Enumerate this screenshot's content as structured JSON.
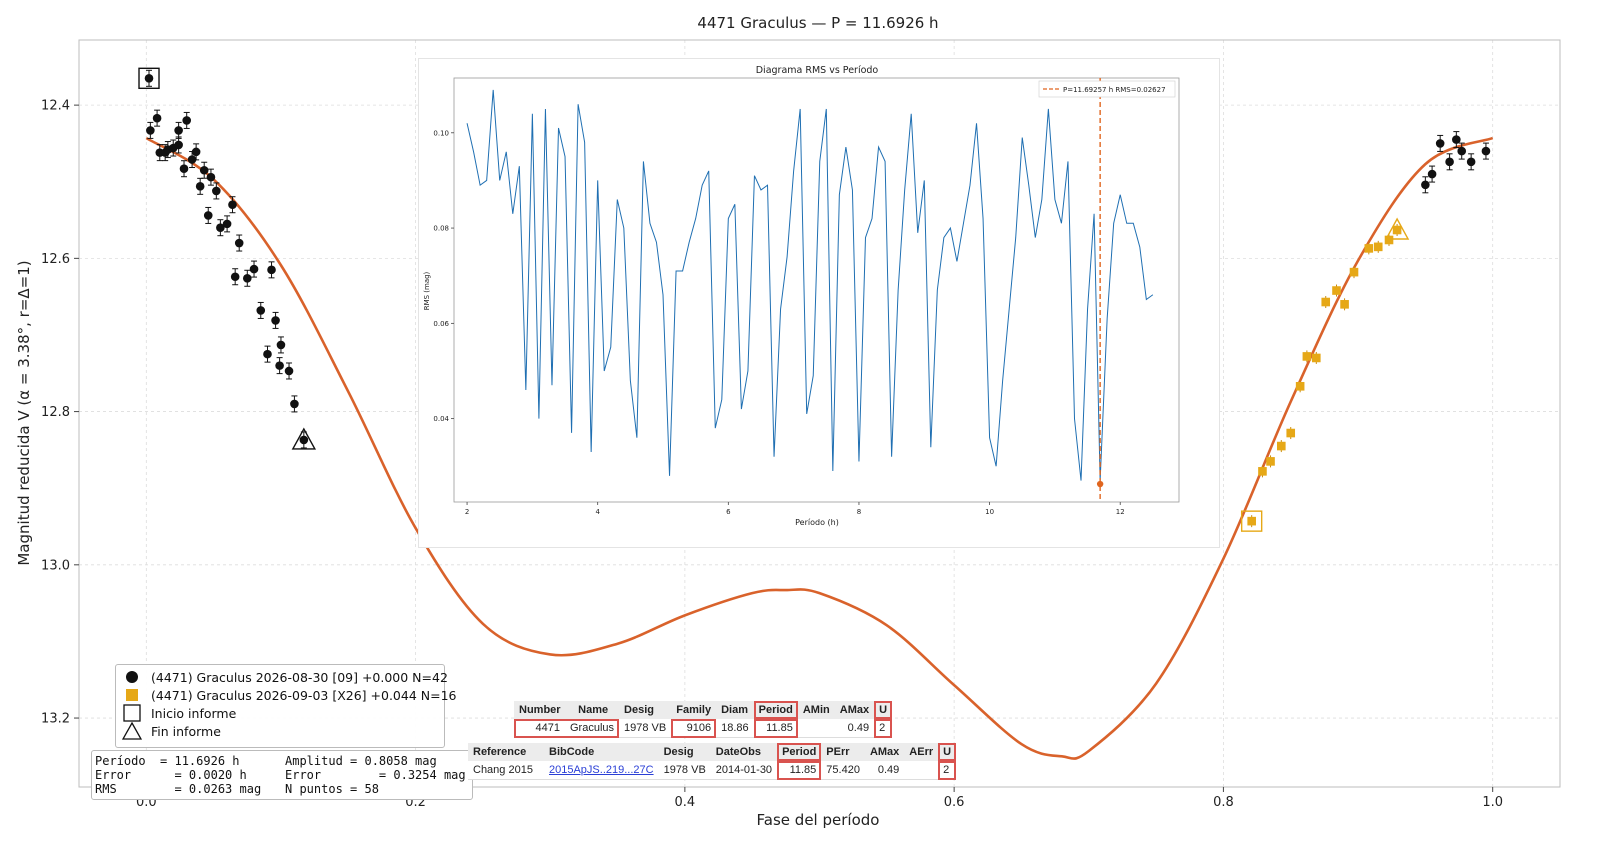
{
  "chart_data": {
    "type": "scatter",
    "title": "4471 Graculus — P = 11.6926 h",
    "xlabel": "Fase del período",
    "ylabel": "Magnitud reducida V  (α = 3.38°, r=Δ=1)",
    "xlim": [
      -0.05,
      1.05
    ],
    "ylim": [
      13.29,
      12.315
    ],
    "y_inverted": true,
    "x_ticks": [
      "0.0",
      "0.2",
      "0.4",
      "0.6",
      "0.8",
      "1.0"
    ],
    "x_tick_values": [
      0.0,
      0.2,
      0.4,
      0.6,
      0.8,
      1.0
    ],
    "y_ticks": [
      "12.4",
      "12.6",
      "12.8",
      "13.0",
      "13.2"
    ],
    "y_tick_values": [
      12.4,
      12.6,
      12.8,
      13.0,
      13.2
    ],
    "grid": true,
    "legend_position": "lower-left",
    "colors": {
      "session1": "#111111",
      "session2": "#e6a817",
      "fit": "#d9622b"
    },
    "series": [
      {
        "name": "(4471) Graculus 2026-08-30 [09] +0.000 N=42",
        "marker": "circle",
        "points": [
          [
            0.002,
            12.365
          ],
          [
            0.003,
            12.433
          ],
          [
            0.008,
            12.417
          ],
          [
            0.01,
            12.462
          ],
          [
            0.014,
            12.462
          ],
          [
            0.016,
            12.458
          ],
          [
            0.02,
            12.456
          ],
          [
            0.024,
            12.452
          ],
          [
            0.024,
            12.433
          ],
          [
            0.028,
            12.483
          ],
          [
            0.03,
            12.42
          ],
          [
            0.034,
            12.471
          ],
          [
            0.037,
            12.461
          ],
          [
            0.04,
            12.506
          ],
          [
            0.043,
            12.485
          ],
          [
            0.046,
            12.544
          ],
          [
            0.048,
            12.494
          ],
          [
            0.052,
            12.512
          ],
          [
            0.055,
            12.56
          ],
          [
            0.06,
            12.555
          ],
          [
            0.064,
            12.53
          ],
          [
            0.066,
            12.624
          ],
          [
            0.069,
            12.58
          ],
          [
            0.075,
            12.626
          ],
          [
            0.08,
            12.614
          ],
          [
            0.085,
            12.668
          ],
          [
            0.09,
            12.725
          ],
          [
            0.093,
            12.615
          ],
          [
            0.096,
            12.681
          ],
          [
            0.099,
            12.74
          ],
          [
            0.1,
            12.713
          ],
          [
            0.106,
            12.747
          ],
          [
            0.11,
            12.79
          ],
          [
            0.117,
            12.837
          ],
          [
            0.95,
            12.504
          ],
          [
            0.955,
            12.49
          ],
          [
            0.961,
            12.45
          ],
          [
            0.968,
            12.474
          ],
          [
            0.973,
            12.445
          ],
          [
            0.977,
            12.46
          ],
          [
            0.984,
            12.474
          ],
          [
            0.995,
            12.46
          ]
        ]
      },
      {
        "name": "(4471) Graculus 2026-09-03 [X26] +0.044 N=16",
        "marker": "square",
        "points": [
          [
            0.821,
            12.943
          ],
          [
            0.829,
            12.878
          ],
          [
            0.835,
            12.865
          ],
          [
            0.843,
            12.845
          ],
          [
            0.85,
            12.828
          ],
          [
            0.857,
            12.767
          ],
          [
            0.862,
            12.728
          ],
          [
            0.869,
            12.73
          ],
          [
            0.876,
            12.657
          ],
          [
            0.884,
            12.642
          ],
          [
            0.89,
            12.66
          ],
          [
            0.897,
            12.618
          ],
          [
            0.908,
            12.587
          ],
          [
            0.915,
            12.585
          ],
          [
            0.923,
            12.576
          ],
          [
            0.929,
            12.563
          ]
        ]
      }
    ],
    "fit_curve": {
      "name": "Ajuste de Fourier",
      "values": [
        [
          0.0,
          12.443
        ],
        [
          0.05,
          12.497
        ],
        [
          0.1,
          12.609
        ],
        [
          0.15,
          12.774
        ],
        [
          0.2,
          12.952
        ],
        [
          0.25,
          13.077
        ],
        [
          0.3,
          13.117
        ],
        [
          0.35,
          13.103
        ],
        [
          0.4,
          13.066
        ],
        [
          0.45,
          13.037
        ],
        [
          0.475,
          13.033
        ],
        [
          0.5,
          13.037
        ],
        [
          0.55,
          13.079
        ],
        [
          0.6,
          13.157
        ],
        [
          0.65,
          13.234
        ],
        [
          0.68,
          13.25
        ],
        [
          0.7,
          13.243
        ],
        [
          0.75,
          13.155
        ],
        [
          0.8,
          12.992
        ],
        [
          0.85,
          12.787
        ],
        [
          0.9,
          12.603
        ],
        [
          0.95,
          12.477
        ],
        [
          1.0,
          12.443
        ]
      ]
    },
    "start_marker": {
      "label": "Inicio informe",
      "x": 0.002,
      "y": 12.365
    },
    "end_markers": [
      {
        "label": "Fin informe",
        "x": 0.117,
        "y": 12.837
      },
      {
        "label": "Fin informe",
        "x": 0.929,
        "y": 12.563
      }
    ],
    "session2_start_marker": {
      "x": 0.821,
      "y": 12.943
    },
    "inset": {
      "type": "line",
      "title": "Diagrama RMS vs Período",
      "xlabel": "Período (h)",
      "ylabel": "RMS (mag)",
      "xlim": [
        1.8,
        12.9
      ],
      "ylim": [
        0.0225,
        0.1115
      ],
      "x_ticks": [
        2,
        4,
        6,
        8,
        10,
        12
      ],
      "y_ticks": [
        "0.04",
        "0.06",
        "0.08",
        "0.10"
      ],
      "y_tick_values": [
        0.04,
        0.06,
        0.08,
        0.1
      ],
      "legend": "P=11.69257 h   RMS=0.02627",
      "best_period": 11.69257,
      "best_rms": 0.02627,
      "x": [
        2.0,
        2.1,
        2.2,
        2.3,
        2.4,
        2.5,
        2.6,
        2.7,
        2.8,
        2.9,
        3.0,
        3.1,
        3.2,
        3.3,
        3.4,
        3.5,
        3.6,
        3.7,
        3.8,
        3.9,
        4.0,
        4.1,
        4.2,
        4.3,
        4.4,
        4.5,
        4.6,
        4.7,
        4.8,
        4.9,
        5.0,
        5.1,
        5.2,
        5.3,
        5.4,
        5.5,
        5.6,
        5.7,
        5.8,
        5.9,
        6.0,
        6.1,
        6.2,
        6.3,
        6.4,
        6.5,
        6.6,
        6.7,
        6.8,
        6.9,
        7.0,
        7.1,
        7.2,
        7.3,
        7.4,
        7.5,
        7.6,
        7.7,
        7.8,
        7.9,
        8.0,
        8.1,
        8.2,
        8.3,
        8.4,
        8.5,
        8.6,
        8.7,
        8.8,
        8.9,
        9.0,
        9.1,
        9.2,
        9.3,
        9.4,
        9.5,
        9.6,
        9.7,
        9.8,
        9.9,
        10.0,
        10.1,
        10.2,
        10.3,
        10.4,
        10.5,
        10.6,
        10.7,
        10.8,
        10.9,
        11.0,
        11.1,
        11.2,
        11.3,
        11.4,
        11.5,
        11.6,
        11.69257,
        11.8,
        11.9,
        12.0,
        12.1,
        12.2,
        12.3,
        12.4,
        12.5
      ],
      "y": [
        0.102,
        0.096,
        0.089,
        0.09,
        0.109,
        0.09,
        0.096,
        0.083,
        0.093,
        0.046,
        0.104,
        0.04,
        0.105,
        0.047,
        0.101,
        0.095,
        0.037,
        0.106,
        0.098,
        0.033,
        0.09,
        0.05,
        0.055,
        0.086,
        0.08,
        0.048,
        0.036,
        0.094,
        0.081,
        0.077,
        0.066,
        0.028,
        0.071,
        0.071,
        0.077,
        0.082,
        0.089,
        0.092,
        0.038,
        0.044,
        0.082,
        0.085,
        0.042,
        0.05,
        0.091,
        0.088,
        0.089,
        0.032,
        0.063,
        0.074,
        0.092,
        0.105,
        0.041,
        0.049,
        0.094,
        0.105,
        0.029,
        0.087,
        0.097,
        0.088,
        0.031,
        0.078,
        0.082,
        0.097,
        0.094,
        0.032,
        0.067,
        0.088,
        0.104,
        0.079,
        0.09,
        0.034,
        0.067,
        0.078,
        0.08,
        0.073,
        0.081,
        0.089,
        0.102,
        0.082,
        0.036,
        0.03,
        0.048,
        0.063,
        0.078,
        0.099,
        0.089,
        0.078,
        0.086,
        0.105,
        0.086,
        0.081,
        0.094,
        0.04,
        0.027,
        0.063,
        0.083,
        0.027,
        0.061,
        0.081,
        0.087,
        0.081,
        0.081,
        0.076,
        0.065,
        0.066
      ]
    }
  },
  "legend": {
    "items": [
      {
        "label": "(4471) Graculus 2026-08-30 [09] +0.000 N=42",
        "marker": "circle",
        "color": "#111111"
      },
      {
        "label": "(4471) Graculus 2026-09-03 [X26] +0.044 N=16",
        "marker": "square",
        "color": "#e6a817"
      },
      {
        "label": "Inicio informe",
        "marker": "open-square"
      },
      {
        "label": "Fin informe",
        "marker": "open-triangle"
      }
    ]
  },
  "stats": {
    "line1a": "Período  = 11.6926 h",
    "line1b": "Amplitud = 0.8058 mag",
    "line2a": "Error      = 0.0020 h",
    "line2b": "Error        = 0.3254 mag",
    "line3a": "RMS        = 0.0263 mag",
    "line3b": "N puntos = 58"
  },
  "table1": {
    "headers": [
      "Number",
      "Name",
      "Desig",
      "Family",
      "Diam",
      "Period",
      "AMin",
      "AMax",
      "U"
    ],
    "row": [
      "4471",
      "Graculus",
      "1978 VB",
      "9106",
      "18.86",
      "11.85",
      "",
      "0.49",
      "2"
    ]
  },
  "table2": {
    "headers": [
      "Reference",
      "BibCode",
      "Desig",
      "DateObs",
      "Period",
      "PErr",
      "AMax",
      "AErr",
      "U"
    ],
    "row": [
      "Chang 2015",
      "2015ApJS..219...27C",
      "1978 VB",
      "2014-01-30",
      "11.85",
      "75.420",
      "0.49",
      "",
      "2"
    ]
  }
}
